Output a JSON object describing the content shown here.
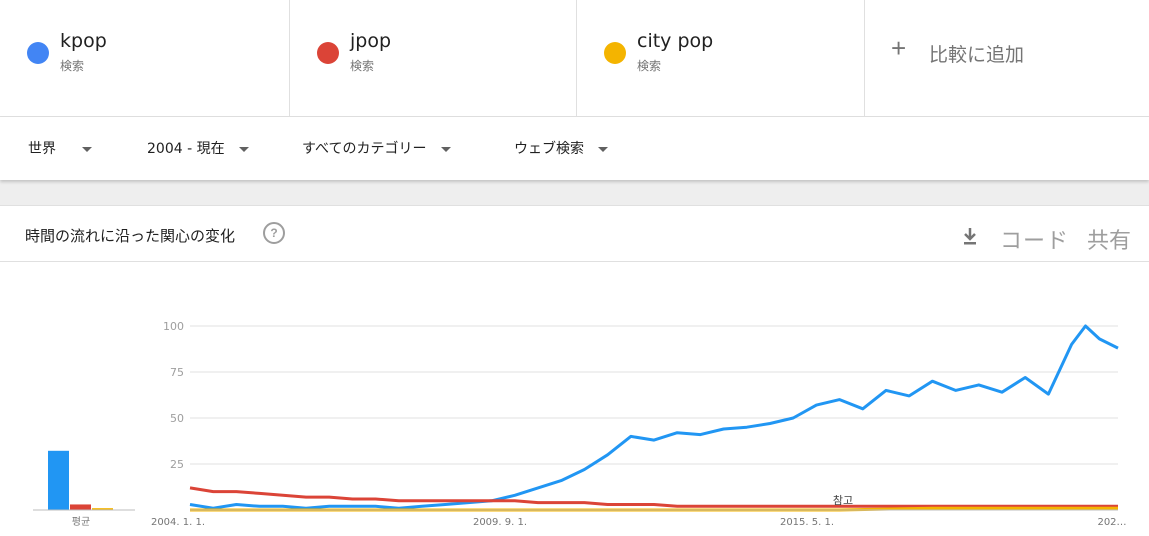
{
  "terms": [
    {
      "name": "kpop",
      "sub": "検索",
      "color": "#4285f4"
    },
    {
      "name": "jpop",
      "sub": "検索",
      "color": "#db4437"
    },
    {
      "name": "city pop",
      "sub": "検索",
      "color": "#f4b400"
    }
  ],
  "add_compare": {
    "plus": "+",
    "label": "比較に追加"
  },
  "filters": {
    "region": "世界",
    "time": "2004 - 現在",
    "category": "すべてのカテゴリー",
    "search_type": "ウェブ検索"
  },
  "card": {
    "title": "時間の流れに沿った関心の変化",
    "help": "?",
    "code_label": "コード",
    "share_label": "共有"
  },
  "chart_data": {
    "type": "line",
    "average_label": "평균",
    "note_label": "참고",
    "y_ticks": [
      "100",
      "75",
      "50",
      "25"
    ],
    "ylim": [
      0,
      100
    ],
    "x_tick_labels": [
      "2004. 1. 1.",
      "2009. 9. 1.",
      "2015. 5. 1.",
      "202…"
    ],
    "averages": [
      {
        "name": "kpop",
        "value": 32,
        "color": "#2196f3"
      },
      {
        "name": "jpop",
        "value": 3,
        "color": "#db4437"
      },
      {
        "name": "city pop",
        "value": 1,
        "color": "#f4b400"
      }
    ],
    "series": [
      {
        "name": "kpop",
        "color": "#2196f3",
        "points": [
          [
            2004.0,
            3
          ],
          [
            2004.5,
            1
          ],
          [
            2005.0,
            3
          ],
          [
            2005.5,
            2
          ],
          [
            2006.0,
            2
          ],
          [
            2006.5,
            1
          ],
          [
            2007.0,
            2
          ],
          [
            2007.5,
            2
          ],
          [
            2008.0,
            2
          ],
          [
            2008.5,
            1
          ],
          [
            2009.0,
            2
          ],
          [
            2009.5,
            3
          ],
          [
            2010.0,
            4
          ],
          [
            2010.5,
            5
          ],
          [
            2011.0,
            8
          ],
          [
            2011.5,
            12
          ],
          [
            2012.0,
            16
          ],
          [
            2012.5,
            22
          ],
          [
            2013.0,
            30
          ],
          [
            2013.5,
            40
          ],
          [
            2014.0,
            38
          ],
          [
            2014.5,
            42
          ],
          [
            2015.0,
            41
          ],
          [
            2015.5,
            44
          ],
          [
            2016.0,
            45
          ],
          [
            2016.5,
            47
          ],
          [
            2017.0,
            50
          ],
          [
            2017.5,
            57
          ],
          [
            2018.0,
            60
          ],
          [
            2018.5,
            55
          ],
          [
            2019.0,
            65
          ],
          [
            2019.5,
            62
          ],
          [
            2020.0,
            70
          ],
          [
            2020.5,
            65
          ],
          [
            2021.0,
            68
          ],
          [
            2021.5,
            64
          ],
          [
            2022.0,
            72
          ],
          [
            2022.5,
            63
          ],
          [
            2023.0,
            90
          ],
          [
            2023.3,
            100
          ],
          [
            2023.6,
            93
          ],
          [
            2024.0,
            88
          ]
        ]
      },
      {
        "name": "jpop",
        "color": "#db4437",
        "points": [
          [
            2004.0,
            12
          ],
          [
            2004.5,
            10
          ],
          [
            2005.0,
            10
          ],
          [
            2005.5,
            9
          ],
          [
            2006.0,
            8
          ],
          [
            2006.5,
            7
          ],
          [
            2007.0,
            7
          ],
          [
            2007.5,
            6
          ],
          [
            2008.0,
            6
          ],
          [
            2008.5,
            5
          ],
          [
            2009.0,
            5
          ],
          [
            2009.5,
            5
          ],
          [
            2010.0,
            5
          ],
          [
            2010.5,
            5
          ],
          [
            2011.0,
            5
          ],
          [
            2011.5,
            4
          ],
          [
            2012.0,
            4
          ],
          [
            2012.5,
            4
          ],
          [
            2013.0,
            3
          ],
          [
            2013.5,
            3
          ],
          [
            2014.0,
            3
          ],
          [
            2014.5,
            2
          ],
          [
            2015.0,
            2
          ],
          [
            2016.0,
            2
          ],
          [
            2017.0,
            2
          ],
          [
            2018.0,
            2
          ],
          [
            2019.0,
            2
          ],
          [
            2020.0,
            2
          ],
          [
            2021.0,
            2
          ],
          [
            2022.0,
            2
          ],
          [
            2023.0,
            2
          ],
          [
            2024.0,
            2
          ]
        ]
      },
      {
        "name": "city pop",
        "color": "#f4b400",
        "points": [
          [
            2004.0,
            0
          ],
          [
            2006.0,
            0
          ],
          [
            2008.0,
            0
          ],
          [
            2010.0,
            0
          ],
          [
            2012.0,
            0
          ],
          [
            2014.0,
            0
          ],
          [
            2016.0,
            0
          ],
          [
            2018.0,
            0
          ],
          [
            2020.0,
            1
          ],
          [
            2022.0,
            1
          ],
          [
            2024.0,
            1
          ]
        ]
      }
    ]
  }
}
